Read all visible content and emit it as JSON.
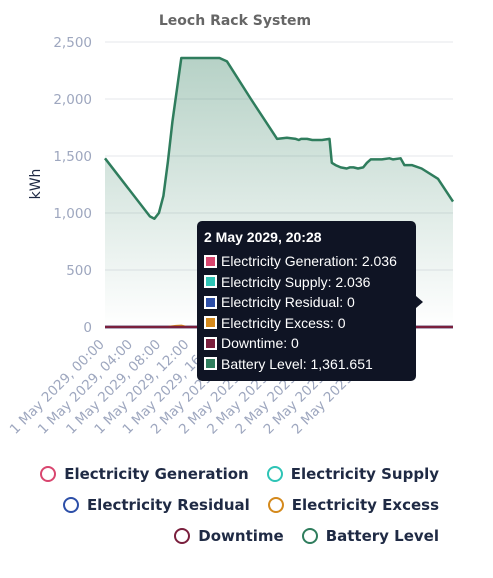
{
  "chart_data": {
    "type": "line",
    "title": "Leoch Rack System",
    "ylabel": "kWh",
    "xlabel": "",
    "ylim": [
      0,
      2500
    ],
    "yticks": [
      0,
      500,
      1000,
      1500,
      2000,
      2500
    ],
    "ytick_labels": [
      "0",
      "500",
      "1,000",
      "1,500",
      "2,000",
      "2,500"
    ],
    "grid": true,
    "legend_position": "bottom",
    "categories": [
      "1 May 2029, 00:00",
      "1 May 2029, 04:00",
      "1 May 2029, 08:00",
      "1 May 2029, 12:00",
      "1 May 2029, 16:00",
      "2 May 2029, 00:00",
      "2 May 2029, 04:00",
      "2 May 2029, 08:00",
      "2 May 2029, 12:00",
      "2 May 2029, 16:00",
      "2 May 2029, 20:00"
    ],
    "x_range_hours": [
      0,
      46.5
    ],
    "series": [
      {
        "name": "Electricity Generation",
        "color": "#d9466f",
        "fill": false,
        "x": [
          0,
          46.5
        ],
        "values": [
          0,
          0
        ]
      },
      {
        "name": "Electricity Supply",
        "color": "#2ec4b6",
        "fill": false,
        "x": [
          0,
          46.5
        ],
        "values": [
          0,
          0
        ]
      },
      {
        "name": "Electricity Residual",
        "color": "#2d4fa8",
        "fill": false,
        "x": [
          0,
          46.5
        ],
        "values": [
          0,
          0
        ]
      },
      {
        "name": "Electricity Excess",
        "color": "#d4891c",
        "fill": false,
        "x": [
          8.5,
          9.5,
          10.2,
          10.8
        ],
        "values": [
          0,
          8,
          10,
          0
        ]
      },
      {
        "name": "Downtime",
        "color": "#7a1f3d",
        "fill": false,
        "x": [
          0,
          46.5
        ],
        "values": [
          0,
          0
        ]
      },
      {
        "name": "Battery Level",
        "color": "#2f7d5d",
        "fill": true,
        "x": [
          0,
          6.0,
          6.6,
          7.2,
          7.8,
          8.4,
          9.0,
          10.2,
          11.2,
          12.3,
          13.5,
          14.5,
          15.3,
          16.3,
          19.5,
          23.0,
          24.3,
          25.5,
          25.9,
          26.2,
          27.0,
          27.7,
          28.3,
          29.0,
          30.0,
          30.3,
          30.8,
          31.5,
          32.3,
          32.7,
          33.2,
          33.8,
          34.5,
          35.0,
          35.5,
          37.0,
          38.0,
          38.5,
          39.5,
          40.0,
          41.0,
          42.3,
          44.5,
          46.5
        ],
        "values": [
          1480,
          970,
          950,
          1000,
          1150,
          1450,
          1800,
          2360,
          2360,
          2360,
          2360,
          2360,
          2360,
          2330,
          2000,
          1650,
          1660,
          1650,
          1640,
          1650,
          1650,
          1640,
          1640,
          1640,
          1650,
          1440,
          1420,
          1400,
          1390,
          1400,
          1400,
          1390,
          1400,
          1440,
          1470,
          1470,
          1480,
          1470,
          1480,
          1420,
          1420,
          1390,
          1300,
          1100
        ]
      }
    ]
  },
  "tooltip": {
    "title": "2 May 2029, 20:28",
    "rows": [
      {
        "label": "Electricity Generation: 2.036",
        "color": "#d9466f"
      },
      {
        "label": "Electricity Supply: 2.036",
        "color": "#2ec4b6"
      },
      {
        "label": "Electricity Residual: 0",
        "color": "#2d4fa8"
      },
      {
        "label": "Electricity Excess: 0",
        "color": "#d4891c"
      },
      {
        "label": "Downtime: 0",
        "color": "#7a1f3d"
      },
      {
        "label": "Battery Level: 1,361.651",
        "color": "#2f7d5d"
      }
    ]
  },
  "legend": {
    "rows": [
      [
        {
          "label": "Electricity Generation",
          "color": "#d9466f"
        },
        {
          "label": "Electricity Supply",
          "color": "#2ec4b6"
        }
      ],
      [
        {
          "label": "Electricity Residual",
          "color": "#2d4fa8"
        },
        {
          "label": "Electricity Excess",
          "color": "#d4891c"
        }
      ],
      [
        {
          "label": "Downtime",
          "color": "#7a1f3d"
        },
        {
          "label": "Battery Level",
          "color": "#2f7d5d"
        }
      ]
    ]
  }
}
